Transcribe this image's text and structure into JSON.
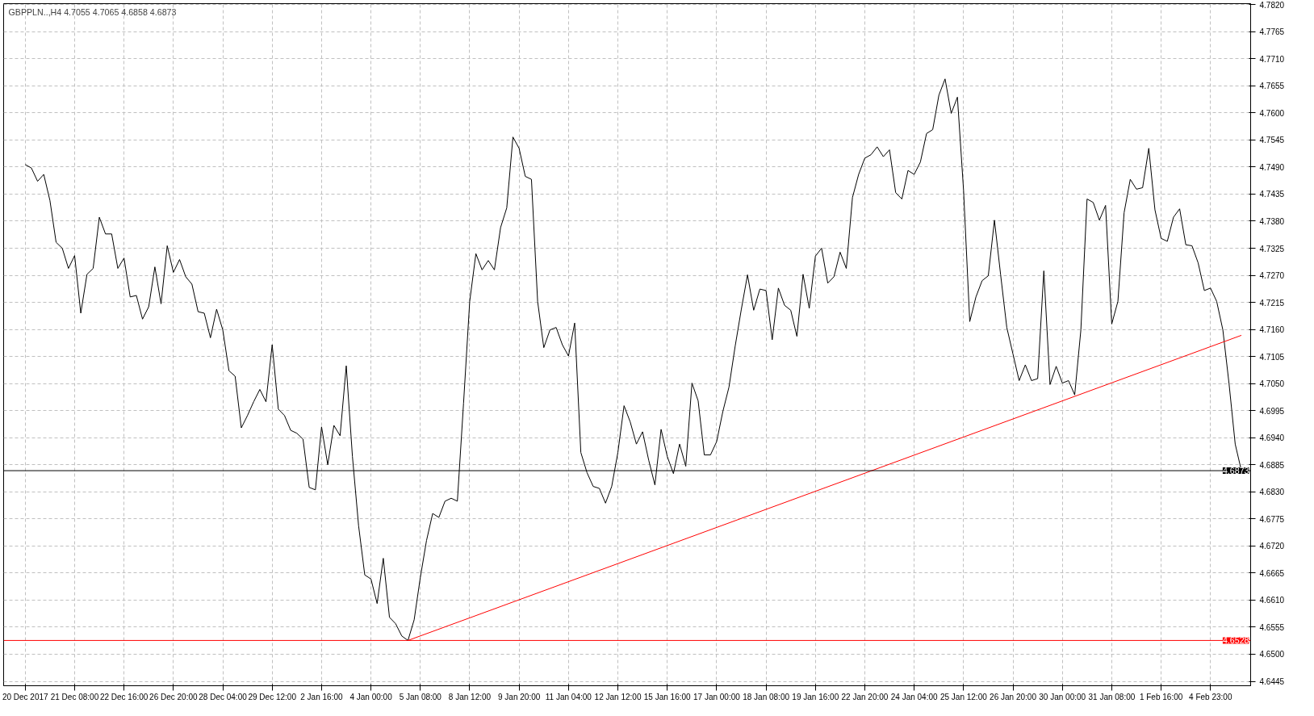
{
  "chart_data": {
    "type": "line",
    "title": "GBPPLN..,H4  4.7055 4.7065 4.6858 4.6873",
    "categories": [
      "20 Dec 2017",
      null,
      null,
      null,
      null,
      null,
      null,
      null,
      "21 Dec 08:00",
      null,
      null,
      null,
      null,
      null,
      null,
      null,
      "22 Dec 16:00",
      null,
      null,
      null,
      null,
      null,
      null,
      null,
      "26 Dec 20:00",
      null,
      null,
      null,
      null,
      null,
      null,
      null,
      "28 Dec 04:00",
      null,
      null,
      null,
      null,
      null,
      null,
      null,
      "29 Dec 12:00",
      null,
      null,
      null,
      null,
      null,
      null,
      null,
      "2 Jan 16:00",
      null,
      null,
      null,
      null,
      null,
      null,
      null,
      "4 Jan 00:00",
      null,
      null,
      null,
      null,
      null,
      null,
      null,
      "5 Jan 08:00",
      null,
      null,
      null,
      null,
      null,
      null,
      null,
      "8 Jan 12:00",
      null,
      null,
      null,
      null,
      null,
      null,
      null,
      "9 Jan 20:00",
      null,
      null,
      null,
      null,
      null,
      null,
      null,
      "11 Jan 04:00",
      null,
      null,
      null,
      null,
      null,
      null,
      null,
      "12 Jan 12:00",
      null,
      null,
      null,
      null,
      null,
      null,
      null,
      "15 Jan 16:00",
      null,
      null,
      null,
      null,
      null,
      null,
      null,
      "17 Jan 00:00",
      null,
      null,
      null,
      null,
      null,
      null,
      null,
      "18 Jan 08:00",
      null,
      null,
      null,
      null,
      null,
      null,
      null,
      "19 Jan 16:00",
      null,
      null,
      null,
      null,
      null,
      null,
      null,
      "22 Jan 20:00",
      null,
      null,
      null,
      null,
      null,
      null,
      null,
      "24 Jan 04:00",
      null,
      null,
      null,
      null,
      null,
      null,
      null,
      "25 Jan 12:00",
      null,
      null,
      null,
      null,
      null,
      null,
      null,
      "26 Jan 20:00",
      null,
      null,
      null,
      null,
      null,
      null,
      null,
      "30 Jan 00:00",
      null,
      null,
      null,
      null,
      null,
      null,
      null,
      "31 Jan 08:00",
      null,
      null,
      null,
      null,
      null,
      null,
      null,
      "1 Feb 16:00",
      null,
      null,
      null,
      null,
      null,
      null,
      null,
      "4 Feb 23:00",
      null,
      null,
      null,
      null,
      null
    ],
    "series": [
      {
        "color": "#000000",
        "values": [
          4.7495,
          4.7488,
          4.7461,
          4.7475,
          4.7422,
          4.7337,
          4.7325,
          4.7284,
          4.731,
          4.7193,
          4.7272,
          4.7284,
          4.7388,
          4.7354,
          4.7354,
          4.7284,
          4.7305,
          4.7226,
          4.7229,
          4.7181,
          4.7206,
          4.7287,
          4.7212,
          4.733,
          4.7276,
          4.7302,
          4.7267,
          4.7252,
          4.7196,
          4.7193,
          4.7143,
          4.7201,
          4.7159,
          4.7076,
          4.7065,
          4.696,
          4.6985,
          4.7013,
          4.7038,
          4.7013,
          4.7129,
          4.6998,
          4.6985,
          4.6955,
          4.6949,
          4.6937,
          4.6839,
          4.6834,
          4.6962,
          4.6885,
          4.6965,
          4.6944,
          4.7086,
          4.6902,
          4.6761,
          4.6661,
          4.6653,
          4.6603,
          4.6695,
          4.6575,
          4.6562,
          4.6537,
          4.6528,
          4.657,
          4.6656,
          4.6731,
          4.6786,
          4.6778,
          4.6811,
          4.6817,
          4.6811,
          4.701,
          4.7217,
          4.7314,
          4.7281,
          4.73,
          4.7281,
          4.7367,
          4.7407,
          4.7551,
          4.7528,
          4.7471,
          4.7465,
          4.7217,
          4.7123,
          4.7159,
          4.7164,
          4.7129,
          4.7106,
          4.7173,
          4.691,
          4.6869,
          4.6841,
          4.6837,
          4.6807,
          4.6841,
          4.691,
          4.7005,
          4.6972,
          4.6927,
          4.6952,
          4.6894,
          4.6844,
          4.6957,
          4.6902,
          4.6867,
          4.6927,
          4.6882,
          4.7051,
          4.7015,
          4.6905,
          4.6905,
          4.6932,
          4.6993,
          4.7043,
          4.7126,
          4.7201,
          4.7271,
          4.7199,
          4.7242,
          4.7239,
          4.7139,
          4.7244,
          4.7209,
          4.7199,
          4.7146,
          4.7272,
          4.7203,
          4.7309,
          4.7325,
          4.7254,
          4.7267,
          4.7317,
          4.7284,
          4.7428,
          4.7475,
          4.7508,
          4.7515,
          4.7531,
          4.7511,
          4.7525,
          4.7438,
          4.7425,
          4.7483,
          4.7475,
          4.75,
          4.7558,
          4.7566,
          4.7636,
          4.7669,
          4.7599,
          4.7632,
          4.7442,
          4.7176,
          4.7226,
          4.7259,
          4.7269,
          4.7382,
          4.7271,
          4.7164,
          4.711,
          4.7056,
          4.7088,
          4.7056,
          4.706,
          4.7279,
          4.7048,
          4.7085,
          4.7051,
          4.7056,
          4.7027,
          4.7159,
          4.7425,
          4.7418,
          4.7382,
          4.7412,
          4.7171,
          4.7217,
          4.7397,
          4.7465,
          4.7445,
          4.7448,
          4.7528,
          4.7403,
          4.7345,
          4.7339,
          4.7388,
          4.7405,
          4.7332,
          4.733,
          4.7295,
          4.7239,
          4.7244,
          4.7217,
          4.7159,
          4.705,
          4.6927,
          4.6873
        ]
      },
      {
        "type": "line",
        "color": "#ff0000",
        "values": [
          null,
          null,
          null,
          null,
          null,
          null,
          null,
          null,
          null,
          null,
          null,
          null,
          null,
          null,
          null,
          null,
          null,
          null,
          null,
          null,
          null,
          null,
          null,
          null,
          null,
          null,
          null,
          null,
          null,
          null,
          null,
          null,
          null,
          null,
          null,
          null,
          null,
          null,
          null,
          null,
          null,
          null,
          null,
          null,
          null,
          null,
          null,
          null,
          null,
          null,
          null,
          null,
          null,
          null,
          null,
          null,
          null,
          null,
          null,
          null,
          null,
          null,
          4.6528,
          null,
          null,
          null,
          null,
          null,
          null,
          null,
          null,
          null,
          null,
          null,
          null,
          null,
          null,
          null,
          null,
          null,
          null,
          null,
          null,
          null,
          null,
          null,
          null,
          null,
          null,
          null,
          null,
          null,
          null,
          null,
          null,
          null,
          null,
          null,
          null,
          null,
          null,
          null,
          null,
          null,
          null,
          null,
          null,
          null,
          null,
          null,
          null,
          null,
          null,
          null,
          null,
          null,
          null,
          null,
          null,
          null,
          null,
          null,
          null,
          null,
          null,
          null,
          null,
          null,
          null,
          null,
          null,
          null,
          null,
          null,
          null,
          null,
          null,
          null,
          null,
          null,
          null,
          null,
          null,
          null,
          null,
          null,
          null,
          null,
          null,
          null,
          null,
          null,
          null,
          null,
          null,
          null,
          null,
          null,
          null,
          null,
          null,
          null,
          null,
          null,
          null,
          null,
          null,
          null,
          null,
          null,
          null,
          null,
          null,
          null,
          null,
          null,
          null,
          null,
          null,
          null,
          null,
          null,
          null,
          null,
          null,
          null,
          null,
          null,
          null,
          null,
          null,
          null,
          null,
          null,
          null,
          null,
          null,
          4.7148
        ]
      }
    ],
    "ref_lines": [
      {
        "axis": "y",
        "value": 4.6528,
        "label": "4.6528",
        "color": "#ff0000"
      },
      {
        "axis": "y",
        "value": 4.6873,
        "label": "4.6873",
        "color": "#000000"
      }
    ],
    "ylim": [
      4.6436,
      4.7822
    ],
    "yticks": [
      {
        "value": 4.6445,
        "label": "4.6445"
      },
      {
        "value": 4.65,
        "label": "4.6500"
      },
      {
        "value": 4.6555,
        "label": "4.6555"
      },
      {
        "value": 4.661,
        "label": "4.6610"
      },
      {
        "value": 4.6665,
        "label": "4.6665"
      },
      {
        "value": 4.672,
        "label": "4.6720"
      },
      {
        "value": 4.6775,
        "label": "4.6775"
      },
      {
        "value": 4.683,
        "label": "4.6830"
      },
      {
        "value": 4.6885,
        "label": "4.6885"
      },
      {
        "value": 4.694,
        "label": "4.6940"
      },
      {
        "value": 4.6995,
        "label": "4.6995"
      },
      {
        "value": 4.705,
        "label": "4.7050"
      },
      {
        "value": 4.7105,
        "label": "4.7105"
      },
      {
        "value": 4.716,
        "label": "4.7160"
      },
      {
        "value": 4.7215,
        "label": "4.7215"
      },
      {
        "value": 4.727,
        "label": "4.7270"
      },
      {
        "value": 4.7325,
        "label": "4.7325"
      },
      {
        "value": 4.738,
        "label": "4.7380"
      },
      {
        "value": 4.7435,
        "label": "4.7435"
      },
      {
        "value": 4.749,
        "label": "4.7490"
      },
      {
        "value": 4.7545,
        "label": "4.7545"
      },
      {
        "value": 4.76,
        "label": "4.7600"
      },
      {
        "value": 4.7655,
        "label": "4.7655"
      },
      {
        "value": 4.771,
        "label": "4.7710"
      },
      {
        "value": 4.7765,
        "label": "4.7765"
      },
      {
        "value": 4.782,
        "label": "4.7820"
      }
    ],
    "grid": true,
    "line_style": "solid"
  }
}
